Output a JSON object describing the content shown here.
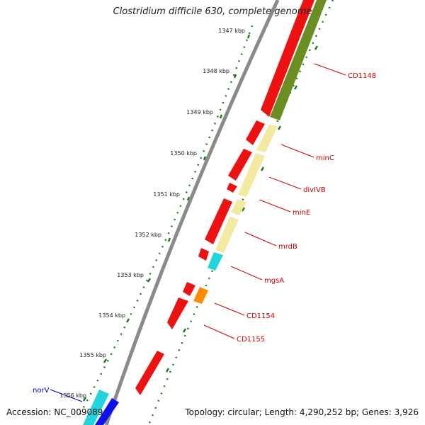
{
  "title": "Clostridium difficile 630, complete genome",
  "accession": "Accession: NC_009089",
  "summary": "Topology: circular; Length: 4,290,252 bp; Genes: 3,926",
  "ticks": [
    "1347 kbp",
    "1348 kbp",
    "1349 kbp",
    "1350 kbp",
    "1351 kbp",
    "1352 kbp",
    "1353 kbp",
    "1354 kbp",
    "1355 kbp",
    "1356 kbp"
  ],
  "gene_labels": [
    "CD1148",
    "minC",
    "divIVB",
    "minE",
    "mrdB",
    "mgsA",
    "CD1154",
    "CD1155",
    "norV"
  ],
  "colors": {
    "backbone": "#8a8a8a",
    "cds": "#ee1111",
    "gene_red": "#cc0000",
    "gene_blue": "#0000cc",
    "tick": "#1a7a1a",
    "olive": "#6b8e23",
    "pale_yellow": "#f2eaa0",
    "cyan": "#22d4dc",
    "orange": "#ff8c00",
    "blue": "#1010ee"
  }
}
